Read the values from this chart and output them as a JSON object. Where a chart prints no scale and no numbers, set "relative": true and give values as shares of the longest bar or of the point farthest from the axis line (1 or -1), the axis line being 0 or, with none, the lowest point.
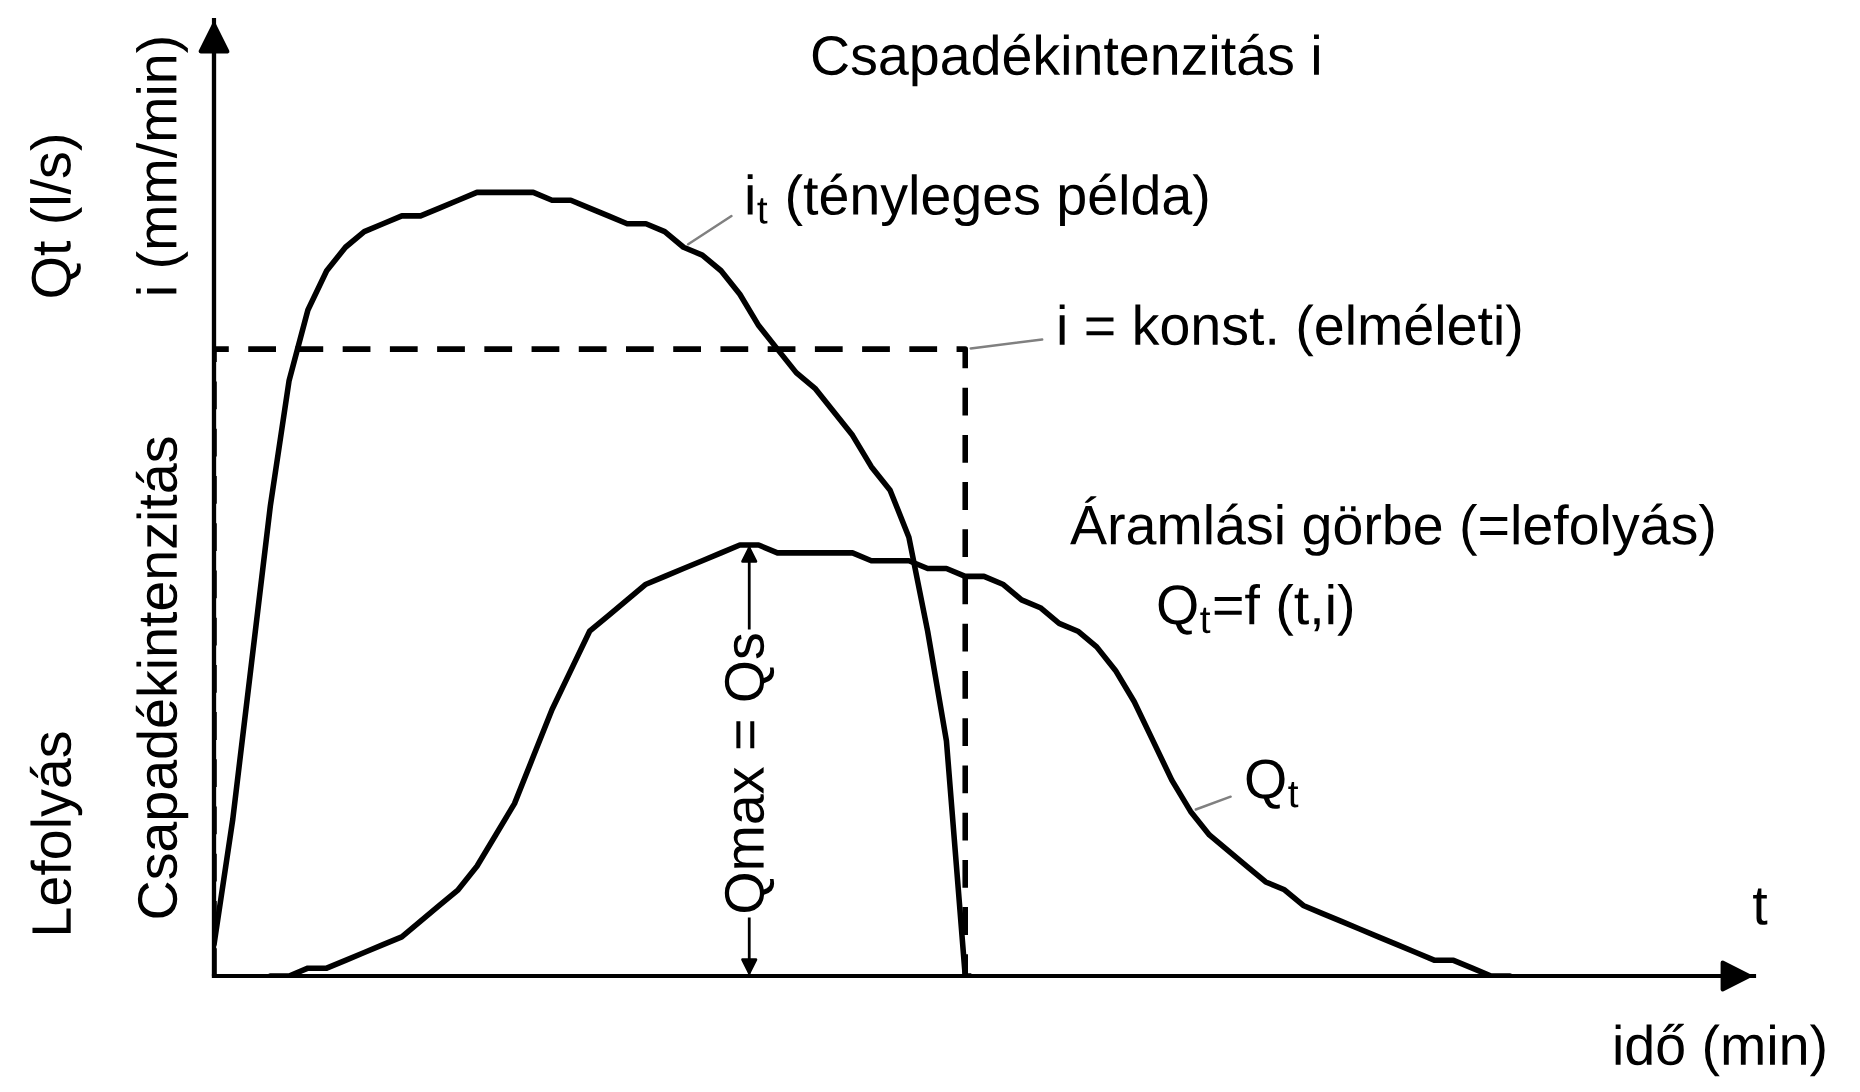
{
  "chart_data": {
    "type": "line",
    "relative": true,
    "title": "Csapadékintenzitás i",
    "xlabel": "idő (min)",
    "categories": [
      null,
      null,
      null,
      null,
      null,
      null,
      null,
      null,
      null,
      null,
      null,
      null,
      null,
      null,
      null,
      null,
      null,
      null,
      null,
      null,
      null,
      null,
      null,
      null,
      null,
      null,
      null,
      null,
      null,
      null,
      null,
      null,
      null,
      null,
      null,
      null,
      null,
      null,
      null,
      null,
      null,
      null,
      null,
      null,
      null,
      null,
      null,
      null,
      null,
      null,
      null,
      null,
      null,
      null,
      null,
      null,
      null,
      null,
      null,
      null,
      null,
      null,
      null,
      null,
      null,
      null,
      null,
      null,
      null,
      null,
      null,
      null,
      null,
      null,
      null,
      null,
      null,
      null,
      null,
      null,
      null,
      null,
      null
    ],
    "series": [
      {
        "name": "i$_{t}$ (tényleges példa)",
        "color": "#000000",
        "values": [
          0.04,
          0.2,
          0.4,
          0.6,
          0.76,
          0.85,
          0.9,
          0.93,
          0.95,
          0.96,
          0.97,
          0.97,
          0.98,
          0.99,
          1.0,
          1.0,
          1.0,
          1.0,
          0.99,
          0.99,
          0.98,
          0.97,
          0.96,
          0.96,
          0.95,
          0.93,
          0.92,
          0.9,
          0.87,
          0.83,
          0.8,
          0.77,
          0.75,
          0.72,
          0.69,
          0.65,
          0.62,
          0.56,
          0.44,
          0.3,
          0.0,
          null,
          null,
          null,
          null,
          null,
          null,
          null,
          null,
          null,
          null,
          null,
          null,
          null,
          null,
          null,
          null,
          null,
          null,
          null,
          null,
          null,
          null,
          null,
          null,
          null,
          null,
          null,
          null,
          null,
          null,
          null,
          null,
          null,
          null,
          null,
          null,
          null,
          null,
          null,
          null,
          null,
          null
        ]
      },
      {
        "name": "i = konst. (elméleti)",
        "type": "step",
        "line_style": "dashed",
        "color": "#000000",
        "values": [
          0,
          0.8,
          0.8,
          0.8,
          0.8,
          0.8,
          0.8,
          0.8,
          0.8,
          0.8,
          0.8,
          0.8,
          0.8,
          0.8,
          0.8,
          0.8,
          0.8,
          0.8,
          0.8,
          0.8,
          0.8,
          0.8,
          0.8,
          0.8,
          0.8,
          0.8,
          0.8,
          0.8,
          0.8,
          0.8,
          0.8,
          0.8,
          0.8,
          0.8,
          0.8,
          0.8,
          0.8,
          0.8,
          0.8,
          0.8,
          0.8,
          0,
          null,
          null,
          null,
          null,
          null,
          null,
          null,
          null,
          null,
          null,
          null,
          null,
          null,
          null,
          null,
          null,
          null,
          null,
          null,
          null,
          null,
          null,
          null,
          null,
          null,
          null,
          null,
          null,
          null,
          null,
          null,
          null,
          null,
          null,
          null,
          null,
          null,
          null,
          null,
          null,
          null
        ]
      },
      {
        "name": "Q$_{t}$",
        "color": "#000000",
        "values": [
          null,
          null,
          null,
          0,
          0,
          0.01,
          0.01,
          0.02,
          0.03,
          0.04,
          0.05,
          0.07,
          0.09,
          0.11,
          0.14,
          0.18,
          0.22,
          0.28,
          0.34,
          0.39,
          0.44,
          0.46,
          0.48,
          0.5,
          0.51,
          0.52,
          0.53,
          0.54,
          0.55,
          0.55,
          0.54,
          0.54,
          0.54,
          0.54,
          0.54,
          0.53,
          0.53,
          0.53,
          0.52,
          0.52,
          0.51,
          0.51,
          0.5,
          0.48,
          0.47,
          0.45,
          0.44,
          0.42,
          0.39,
          0.35,
          0.3,
          0.25,
          0.21,
          0.18,
          0.16,
          0.14,
          0.12,
          0.11,
          0.09,
          0.08,
          0.07,
          0.06,
          0.05,
          0.04,
          0.03,
          0.02,
          0.02,
          0.01,
          0.0,
          0.0,
          null,
          null,
          null,
          null,
          null,
          null,
          null,
          null,
          null,
          null,
          null,
          null,
          null
        ]
      }
    ],
    "annotations": [
      "Qt (l/s)",
      "i (mm/min)",
      "Lefolyás",
      "Csapadékintenzitás",
      "t",
      "Áramlási görbe (=lefolyás)",
      "Q$_{t}$=f (t,i)",
      {
        "text": "Qmax = Qs",
        "y": 0.55
      }
    ]
  }
}
